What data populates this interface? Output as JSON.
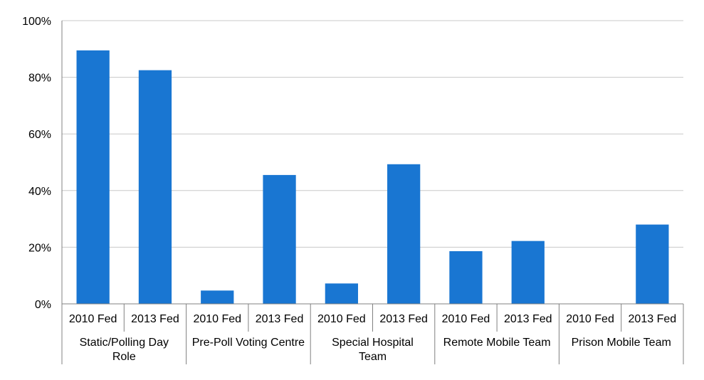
{
  "chart_data": {
    "type": "bar",
    "title": "",
    "xlabel": "",
    "ylabel": "",
    "ylim": [
      0,
      100
    ],
    "y_ticks": [
      "0%",
      "20%",
      "40%",
      "60%",
      "80%",
      "100%"
    ],
    "y_tick_values": [
      0,
      20,
      40,
      60,
      80,
      100
    ],
    "grid": true,
    "legend": "none",
    "bar_color": "#1976D2",
    "groups": [
      {
        "label_lines": [
          "Static/Polling Day",
          "Role"
        ],
        "categories": [
          "2010 Fed",
          "2013 Fed"
        ],
        "values": [
          89.5,
          82.5
        ]
      },
      {
        "label_lines": [
          "Pre-Poll Voting Centre"
        ],
        "categories": [
          "2010 Fed",
          "2013 Fed"
        ],
        "values": [
          4.7,
          45.5
        ]
      },
      {
        "label_lines": [
          "Special Hospital",
          "Team"
        ],
        "categories": [
          "2010 Fed",
          "2013 Fed"
        ],
        "values": [
          7.2,
          49.3
        ]
      },
      {
        "label_lines": [
          "Remote Mobile Team"
        ],
        "categories": [
          "2010 Fed",
          "2013 Fed"
        ],
        "values": [
          18.6,
          22.2
        ]
      },
      {
        "label_lines": [
          "Prison Mobile Team"
        ],
        "categories": [
          "2010 Fed",
          "2013 Fed"
        ],
        "values": [
          0,
          28.0
        ]
      }
    ]
  }
}
